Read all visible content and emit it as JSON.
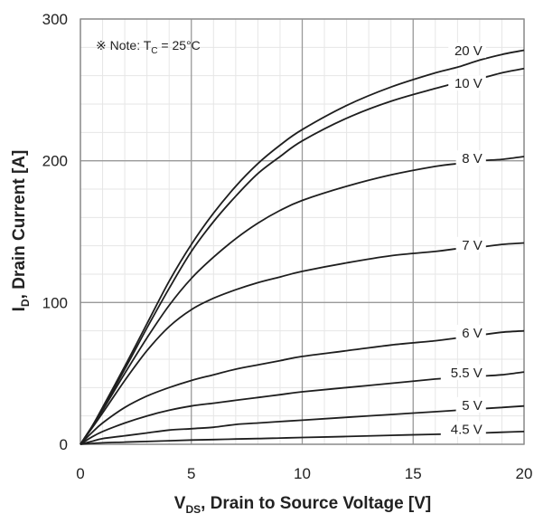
{
  "chart_data": {
    "type": "line",
    "note": {
      "prefix": "※ Note: T",
      "subscript": "C",
      "suffix": " = 25°C"
    },
    "xlabel": {
      "main": "V",
      "sub": "DS",
      "rest": ", Drain to Source Voltage [V]"
    },
    "ylabel": {
      "main": "I",
      "sub": "D",
      "rest": ", Drain Current [A]"
    },
    "xlim": [
      0,
      20
    ],
    "ylim": [
      0,
      300
    ],
    "x_ticks": [
      0,
      5,
      10,
      15,
      20
    ],
    "y_ticks": [
      0,
      100,
      200,
      300
    ],
    "x_tick_labels": [
      "0",
      "5",
      "10",
      "15",
      "20"
    ],
    "y_tick_labels": [
      "0",
      "100",
      "200",
      "300"
    ],
    "grid": {
      "major": true,
      "minor": true
    },
    "series": [
      {
        "name": "20 V",
        "label_at": [
          18.2,
          275
        ],
        "points": [
          [
            0,
            0
          ],
          [
            0.5,
            12
          ],
          [
            1,
            26
          ],
          [
            2,
            55
          ],
          [
            3,
            85
          ],
          [
            4,
            115
          ],
          [
            5,
            141
          ],
          [
            6,
            163
          ],
          [
            7,
            182
          ],
          [
            8,
            198
          ],
          [
            9,
            211
          ],
          [
            10,
            222
          ],
          [
            12,
            239
          ],
          [
            14,
            252
          ],
          [
            16,
            262
          ],
          [
            17,
            266
          ],
          [
            18,
            271
          ],
          [
            19,
            275
          ],
          [
            20,
            278
          ]
        ]
      },
      {
        "name": "10 V",
        "label_at": [
          18.2,
          252
        ],
        "points": [
          [
            0,
            0
          ],
          [
            0.5,
            12
          ],
          [
            1,
            25
          ],
          [
            2,
            53
          ],
          [
            3,
            82
          ],
          [
            4,
            110
          ],
          [
            5,
            136
          ],
          [
            6,
            157
          ],
          [
            7,
            175
          ],
          [
            8,
            191
          ],
          [
            9,
            203
          ],
          [
            10,
            214
          ],
          [
            12,
            230
          ],
          [
            14,
            242
          ],
          [
            16,
            251
          ],
          [
            17,
            255
          ],
          [
            18,
            258
          ],
          [
            19,
            262
          ],
          [
            20,
            265
          ]
        ]
      },
      {
        "name": "8 V",
        "label_at": [
          18.2,
          199
        ],
        "points": [
          [
            0,
            0
          ],
          [
            0.5,
            12
          ],
          [
            1,
            24
          ],
          [
            2,
            50
          ],
          [
            3,
            75
          ],
          [
            4,
            98
          ],
          [
            5,
            117
          ],
          [
            6,
            132
          ],
          [
            7,
            145
          ],
          [
            8,
            156
          ],
          [
            9,
            165
          ],
          [
            10,
            172
          ],
          [
            12,
            182
          ],
          [
            14,
            190
          ],
          [
            16,
            196
          ],
          [
            17,
            198
          ],
          [
            18,
            200
          ],
          [
            19,
            201
          ],
          [
            20,
            203
          ]
        ]
      },
      {
        "name": "7 V",
        "label_at": [
          18.2,
          138
        ],
        "points": [
          [
            0,
            0
          ],
          [
            0.5,
            11
          ],
          [
            1,
            22
          ],
          [
            2,
            45
          ],
          [
            3,
            66
          ],
          [
            4,
            83
          ],
          [
            5,
            95
          ],
          [
            6,
            103
          ],
          [
            7,
            109
          ],
          [
            8,
            114
          ],
          [
            9,
            118
          ],
          [
            10,
            122
          ],
          [
            12,
            128
          ],
          [
            14,
            133
          ],
          [
            16,
            136
          ],
          [
            17,
            138
          ],
          [
            18,
            139
          ],
          [
            19,
            141
          ],
          [
            20,
            142
          ]
        ]
      },
      {
        "name": "6 V",
        "label_at": [
          18.2,
          76
        ],
        "points": [
          [
            0,
            0
          ],
          [
            0.5,
            8
          ],
          [
            1,
            15
          ],
          [
            2,
            26
          ],
          [
            3,
            34
          ],
          [
            4,
            40
          ],
          [
            5,
            45
          ],
          [
            6,
            49
          ],
          [
            7,
            53
          ],
          [
            8,
            56
          ],
          [
            9,
            59
          ],
          [
            10,
            62
          ],
          [
            12,
            66
          ],
          [
            14,
            70
          ],
          [
            16,
            73
          ],
          [
            17,
            75
          ],
          [
            18,
            77
          ],
          [
            19,
            79
          ],
          [
            20,
            80
          ]
        ]
      },
      {
        "name": "5.5 V",
        "label_at": [
          18.2,
          48
        ],
        "points": [
          [
            0,
            0
          ],
          [
            0.5,
            5
          ],
          [
            1,
            9
          ],
          [
            2,
            15
          ],
          [
            3,
            20
          ],
          [
            4,
            24
          ],
          [
            5,
            27
          ],
          [
            6,
            29
          ],
          [
            7,
            31
          ],
          [
            8,
            33
          ],
          [
            9,
            35
          ],
          [
            10,
            37
          ],
          [
            12,
            40
          ],
          [
            14,
            43
          ],
          [
            16,
            46
          ],
          [
            17,
            47
          ],
          [
            18,
            48
          ],
          [
            19,
            49
          ],
          [
            20,
            51
          ]
        ]
      },
      {
        "name": "5 V",
        "label_at": [
          18.2,
          25
        ],
        "points": [
          [
            0,
            0
          ],
          [
            0.5,
            2
          ],
          [
            1,
            4
          ],
          [
            2,
            6
          ],
          [
            3,
            8
          ],
          [
            4,
            10
          ],
          [
            5,
            11
          ],
          [
            6,
            12
          ],
          [
            7,
            14
          ],
          [
            8,
            15
          ],
          [
            9,
            16
          ],
          [
            10,
            17
          ],
          [
            12,
            19
          ],
          [
            14,
            21
          ],
          [
            16,
            23
          ],
          [
            17,
            24
          ],
          [
            18,
            25
          ],
          [
            19,
            26
          ],
          [
            20,
            27
          ]
        ]
      },
      {
        "name": "4.5 V",
        "label_at": [
          18.2,
          8
        ],
        "points": [
          [
            0,
            0
          ],
          [
            1,
            1
          ],
          [
            2,
            1.5
          ],
          [
            3,
            2
          ],
          [
            4,
            2.5
          ],
          [
            5,
            3
          ],
          [
            6,
            3.3
          ],
          [
            7,
            3.7
          ],
          [
            8,
            4
          ],
          [
            9,
            4.4
          ],
          [
            10,
            4.8
          ],
          [
            12,
            5.5
          ],
          [
            14,
            6.3
          ],
          [
            16,
            7
          ],
          [
            17,
            7.4
          ],
          [
            18,
            7.9
          ],
          [
            19,
            8.5
          ],
          [
            20,
            9
          ]
        ]
      }
    ]
  }
}
